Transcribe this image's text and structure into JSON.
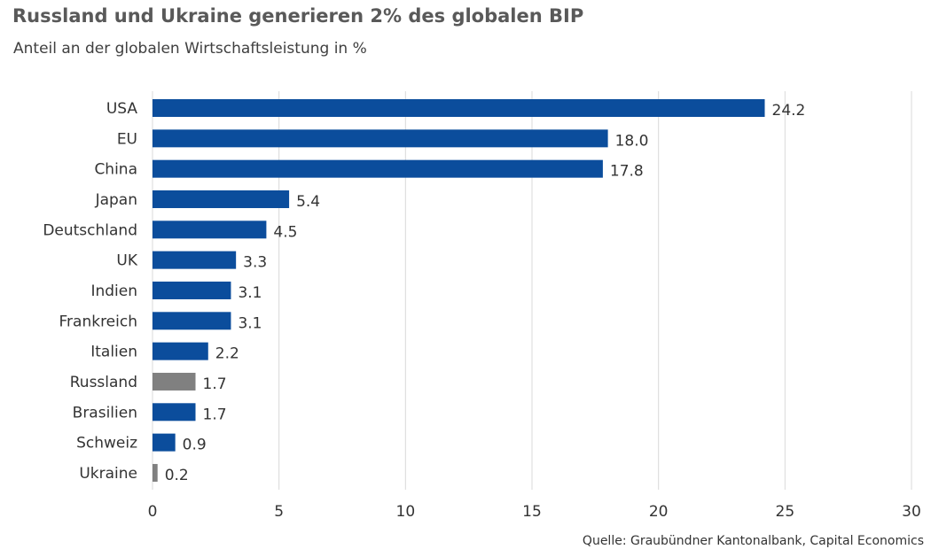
{
  "chart_data": {
    "type": "bar",
    "orientation": "horizontal",
    "title": "Russland und Ukraine generieren 2% des globalen BIP",
    "subtitle": "Anteil an der globalen Wirtschaftsleistung in %",
    "source": "Quelle: Graubündner Kantonalbank, Capital Economics",
    "categories": [
      "USA",
      "EU",
      "China",
      "Japan",
      "Deutschland",
      "UK",
      "Indien",
      "Frankreich",
      "Italien",
      "Russland",
      "Brasilien",
      "Schweiz",
      "Ukraine"
    ],
    "values": [
      24.2,
      18.0,
      17.8,
      5.4,
      4.5,
      3.3,
      3.1,
      3.1,
      2.2,
      1.7,
      1.7,
      0.9,
      0.2
    ],
    "value_labels": [
      "24.2",
      "18.0",
      "17.8",
      "5.4",
      "4.5",
      "3.3",
      "3.1",
      "3.1",
      "2.2",
      "1.7",
      "1.7",
      "0.9",
      "0.2"
    ],
    "highlighted": [
      "Russland",
      "Ukraine"
    ],
    "xlim": [
      0,
      30
    ],
    "xticks": [
      0,
      5,
      10,
      15,
      20,
      25,
      30
    ],
    "xlabel": "",
    "ylabel": "",
    "grid": "vertical",
    "legend": "none",
    "colors": {
      "default_bar": "#0b4d9c",
      "highlight_bar": "#808080",
      "grid": "#d9d9d9"
    }
  }
}
